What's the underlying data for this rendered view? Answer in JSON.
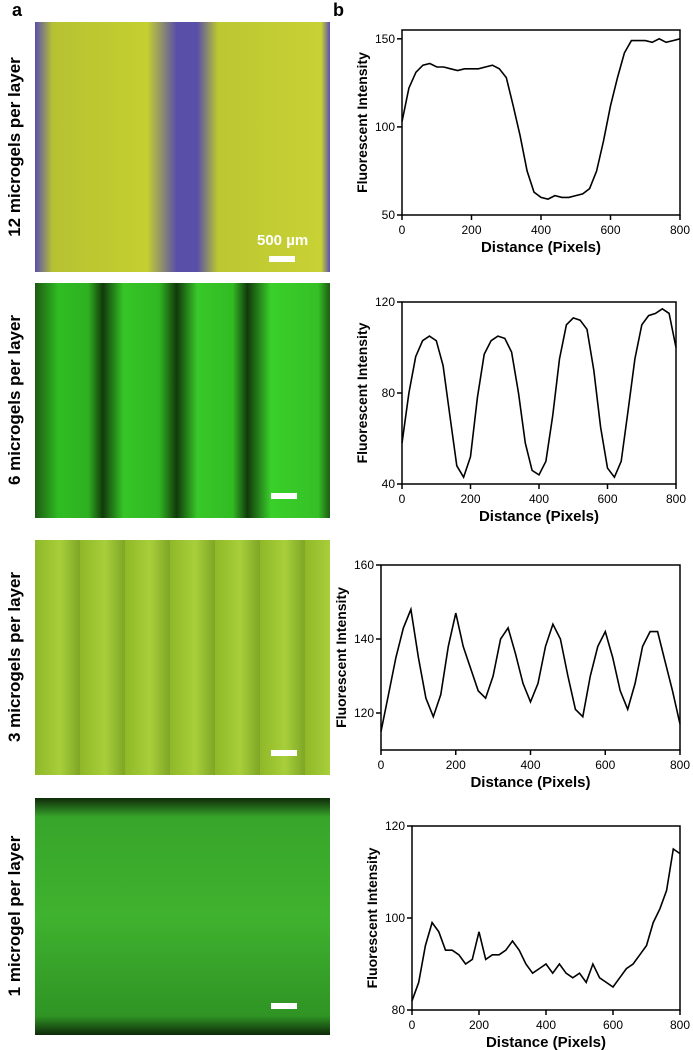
{
  "panel_labels": [
    "a",
    "b"
  ],
  "images": [
    {
      "label": "12 microgels per layer",
      "scale_bar": "500 µm"
    },
    {
      "label": "6 microgels per layer"
    },
    {
      "label": "3 microgels per layer"
    },
    {
      "label": "1 microgel per layer"
    }
  ],
  "chart_data": [
    {
      "type": "line",
      "xlabel": "Distance (Pixels)",
      "ylabel": "Fluorescent Intensity",
      "color": "#000000",
      "xlim": [
        0,
        800
      ],
      "xticks": [
        0,
        200,
        400,
        600,
        800
      ],
      "ylim": [
        50,
        155
      ],
      "yticks": [
        50,
        100,
        150
      ],
      "x": [
        0,
        20,
        40,
        60,
        80,
        100,
        120,
        140,
        160,
        180,
        200,
        220,
        240,
        260,
        280,
        300,
        320,
        340,
        360,
        380,
        400,
        420,
        440,
        460,
        480,
        500,
        520,
        540,
        560,
        580,
        600,
        620,
        640,
        660,
        680,
        700,
        720,
        740,
        760,
        780,
        800
      ],
      "values": [
        103,
        122,
        131,
        135,
        136,
        134,
        134,
        133,
        132,
        133,
        133,
        133,
        134,
        135,
        133,
        128,
        112,
        95,
        75,
        63,
        60,
        59,
        61,
        60,
        60,
        61,
        62,
        65,
        75,
        92,
        112,
        128,
        142,
        149,
        149,
        149,
        148,
        150,
        148,
        149,
        150
      ]
    },
    {
      "type": "line",
      "xlabel": "Distance (Pixels)",
      "ylabel": "Fluorescent Intensity",
      "color": "#000000",
      "xlim": [
        0,
        800
      ],
      "xticks": [
        0,
        200,
        400,
        600,
        800
      ],
      "ylim": [
        40,
        120
      ],
      "yticks": [
        40,
        80,
        120
      ],
      "x": [
        0,
        20,
        40,
        60,
        80,
        100,
        120,
        140,
        160,
        180,
        200,
        220,
        240,
        260,
        280,
        300,
        320,
        340,
        360,
        380,
        400,
        420,
        440,
        460,
        480,
        500,
        520,
        540,
        560,
        580,
        600,
        620,
        640,
        660,
        680,
        700,
        720,
        740,
        760,
        780,
        800
      ],
      "values": [
        58,
        80,
        96,
        103,
        105,
        103,
        92,
        70,
        48,
        43,
        52,
        78,
        97,
        103,
        105,
        104,
        98,
        80,
        58,
        46,
        44,
        50,
        70,
        95,
        110,
        113,
        112,
        108,
        90,
        65,
        47,
        43,
        50,
        72,
        95,
        110,
        114,
        115,
        117,
        115,
        100
      ]
    },
    {
      "type": "line",
      "xlabel": "Distance (Pixels)",
      "ylabel": "Fluorescent Intensity",
      "color": "#000000",
      "xlim": [
        0,
        800
      ],
      "xticks": [
        0,
        200,
        400,
        600,
        800
      ],
      "ylim": [
        110,
        160
      ],
      "yticks": [
        120,
        140,
        160
      ],
      "x": [
        0,
        20,
        40,
        60,
        80,
        100,
        120,
        140,
        160,
        180,
        200,
        220,
        240,
        260,
        280,
        300,
        320,
        340,
        360,
        380,
        400,
        420,
        440,
        460,
        480,
        500,
        520,
        540,
        560,
        580,
        600,
        620,
        640,
        660,
        680,
        700,
        720,
        740,
        760,
        780,
        800
      ],
      "values": [
        115,
        125,
        135,
        143,
        148,
        135,
        124,
        119,
        125,
        138,
        147,
        138,
        132,
        126,
        124,
        130,
        140,
        143,
        136,
        128,
        123,
        128,
        138,
        144,
        140,
        130,
        121,
        119,
        130,
        138,
        142,
        135,
        126,
        121,
        128,
        138,
        142,
        142,
        134,
        126,
        117
      ]
    },
    {
      "type": "line",
      "xlabel": "Distance (Pixels)",
      "ylabel": "Fluorescent Intensity",
      "color": "#000000",
      "xlim": [
        0,
        800
      ],
      "xticks": [
        0,
        200,
        400,
        600,
        800
      ],
      "ylim": [
        80,
        120
      ],
      "yticks": [
        80,
        100,
        120
      ],
      "x": [
        0,
        20,
        40,
        60,
        80,
        100,
        120,
        140,
        160,
        180,
        200,
        220,
        240,
        260,
        280,
        300,
        320,
        340,
        360,
        380,
        400,
        420,
        440,
        460,
        480,
        500,
        520,
        540,
        560,
        580,
        600,
        620,
        640,
        660,
        680,
        700,
        720,
        740,
        760,
        780,
        800
      ],
      "values": [
        82,
        86,
        94,
        99,
        97,
        93,
        93,
        92,
        90,
        91,
        97,
        91,
        92,
        92,
        93,
        95,
        93,
        90,
        88,
        89,
        90,
        88,
        90,
        88,
        87,
        88,
        86,
        90,
        87,
        86,
        85,
        87,
        89,
        90,
        92,
        94,
        99,
        102,
        106,
        115,
        114
      ]
    }
  ]
}
